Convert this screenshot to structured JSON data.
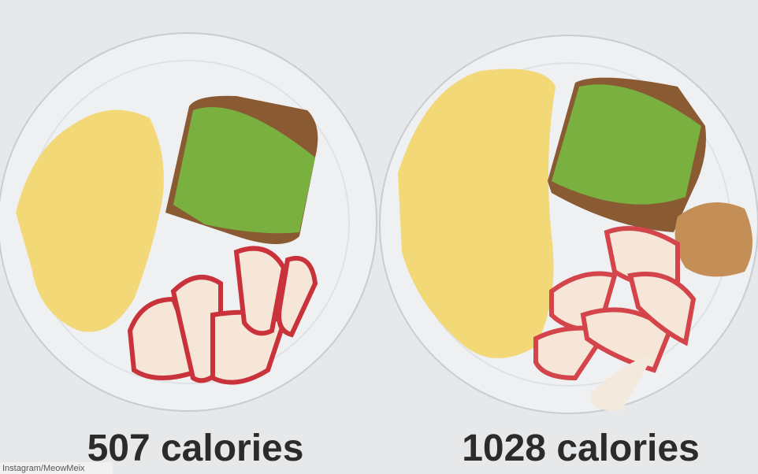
{
  "captions": [
    "507 calories",
    "1028 calories"
  ],
  "credit": "Instagram/MeowMeix"
}
